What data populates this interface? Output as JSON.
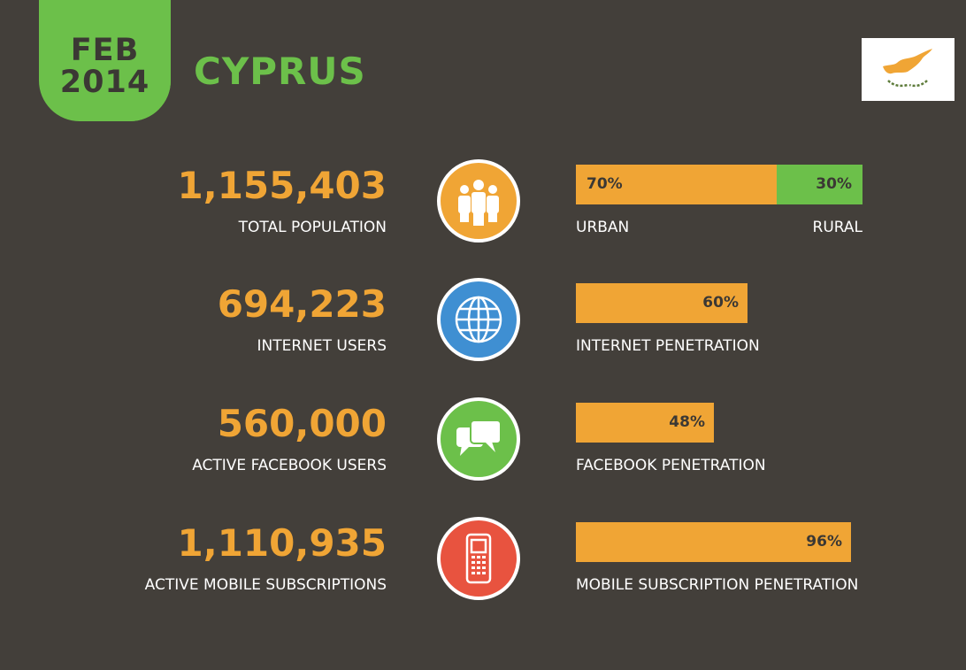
{
  "header": {
    "month": "FEB",
    "year": "2014",
    "country": "CYPRUS"
  },
  "colors": {
    "background": "#433f3a",
    "accent_green": "#6cc04a",
    "accent_orange": "#f0a535",
    "icon_population": "#f0a535",
    "icon_internet": "#3f8fd2",
    "icon_facebook": "#6cc04a",
    "icon_mobile": "#e8533f"
  },
  "chart_data": {
    "type": "bar",
    "rows": [
      {
        "number": "1,155,403",
        "label": "TOTAL POPULATION",
        "icon": "people-icon",
        "bar_segments": [
          {
            "name": "URBAN",
            "value": 70,
            "text": "70%"
          },
          {
            "name": "RURAL",
            "value": 30,
            "text": "30%"
          }
        ]
      },
      {
        "number": "694,223",
        "label": "INTERNET USERS",
        "icon": "globe-icon",
        "bar_label": "INTERNET PENETRATION",
        "value": 60,
        "text": "60%"
      },
      {
        "number": "560,000",
        "label": "ACTIVE FACEBOOK USERS",
        "icon": "chat-bubbles-icon",
        "bar_label": "FACEBOOK PENETRATION",
        "value": 48,
        "text": "48%"
      },
      {
        "number": "1,110,935",
        "label": "ACTIVE MOBILE SUBSCRIPTIONS",
        "icon": "mobile-phone-icon",
        "bar_label": "MOBILE SUBSCRIPTION PENETRATION",
        "value": 96,
        "text": "96%"
      }
    ],
    "xlim": [
      0,
      100
    ]
  }
}
